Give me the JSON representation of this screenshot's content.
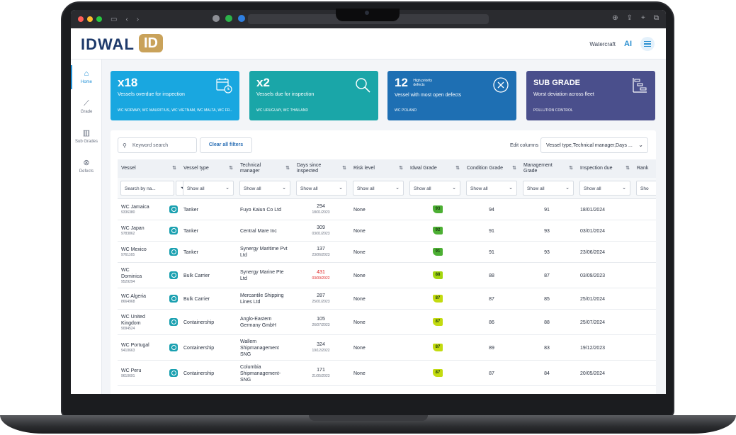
{
  "header": {
    "logo_text": "IDWAL",
    "logo_badge": "ID",
    "watercraft_label": "Watercraft",
    "ai_label": "AI"
  },
  "sidebar": {
    "items": [
      {
        "label": "Home",
        "icon": "home-icon"
      },
      {
        "label": "Grade",
        "icon": "chart-icon"
      },
      {
        "label": "Sub Grades",
        "icon": "bar-chart-icon"
      },
      {
        "label": "Defects",
        "icon": "x-circle-icon"
      }
    ]
  },
  "cards": [
    {
      "big": "x18",
      "desc": "Vessels overdue for inspection",
      "foot": "WC NORWAY, WC MAURITIUS, WC VIETNAM, WC MALTA, WC FR...",
      "color": "#19a7e0",
      "icon": "calendar-clock-icon"
    },
    {
      "big": "x2",
      "desc": "Vessels due for inspection",
      "foot": "WC URUGUAY, WC THAILAND",
      "color": "#1aa6a8",
      "icon": "search-icon"
    },
    {
      "big": "12",
      "small1": "High priority",
      "small2": "defects",
      "desc": "Vessel with most open defects",
      "foot": "WC POLAND",
      "color": "#1e6fb3",
      "icon": "x-circle-icon"
    },
    {
      "big": "SUB GRADE",
      "desc": "Worst deviation across fleet",
      "foot": "POLLUTION CONTROL",
      "color": "#4a4f8c",
      "icon": "hierarchy-icon"
    }
  ],
  "toolbar": {
    "search_placeholder": "Keyword search",
    "clear_label": "Clear all filters",
    "edit_columns_label": "Edit columns",
    "edit_columns_value": "Vessel type,Technical manager,Days ..."
  },
  "table": {
    "headers": [
      "Vessel",
      "Vessel type",
      "Technical manager",
      "Days since inspected",
      "Risk level",
      "Idwal Grade",
      "Condition Grade",
      "Management Grade",
      "Inspection due",
      "Rank"
    ],
    "filters": {
      "vessel_placeholder": "Search by na...",
      "show_all": "Show all",
      "show_all_short": "Sho"
    },
    "rows": [
      {
        "name": [
          "WC Jamaica"
        ],
        "imo": "9336380",
        "type": "Tanker",
        "manager": [
          "Fuyo Kaiun Co Ltd"
        ],
        "days": "294",
        "date": "18/01/2023",
        "risk": "None",
        "grade": "93",
        "condition": "94",
        "management": "91",
        "due": "18/01/2024",
        "red": false
      },
      {
        "name": [
          "WC Japan"
        ],
        "imo": "9783862",
        "type": "Tanker",
        "manager": [
          "Central Mare Inc"
        ],
        "days": "309",
        "date": "03/01/2023",
        "risk": "None",
        "grade": "92",
        "condition": "91",
        "management": "93",
        "due": "03/01/2024",
        "red": false
      },
      {
        "name": [
          "WC Mexico"
        ],
        "imo": "9761165",
        "type": "Tanker",
        "manager": [
          "Synergy Maritime Pvt",
          "Ltd"
        ],
        "days": "137",
        "date": "23/06/2023",
        "risk": "None",
        "grade": "91",
        "condition": "91",
        "management": "93",
        "due": "23/06/2024",
        "red": false
      },
      {
        "name": [
          "WC",
          "Dominica"
        ],
        "imo": "9529294",
        "type": "Bulk Carrier",
        "manager": [
          "Synergy Marine Pte",
          "Ltd"
        ],
        "days": "431",
        "date": "03/09/2022",
        "risk": "None",
        "grade": "88",
        "condition": "88",
        "management": "87",
        "due": "03/09/2023",
        "red": true
      },
      {
        "name": [
          "WC Algeria"
        ],
        "imo": "8664968",
        "type": "Bulk Carrier",
        "manager": [
          "Mercantile Shipping",
          "Lines Ltd"
        ],
        "days": "287",
        "date": "25/01/2023",
        "risk": "None",
        "grade": "87",
        "condition": "87",
        "management": "85",
        "due": "25/01/2024",
        "red": false
      },
      {
        "name": [
          "WC United",
          "Kingdom"
        ],
        "imo": "9094524",
        "type": "Containership",
        "manager": [
          "Anglo-Eastern",
          "Germany GmbH"
        ],
        "days": "105",
        "date": "26/07/2023",
        "risk": "None",
        "grade": "87",
        "condition": "86",
        "management": "88",
        "due": "25/07/2024",
        "red": false
      },
      {
        "name": [
          "WC Portugal"
        ],
        "imo": "9410663",
        "type": "Containership",
        "manager": [
          "Wallem",
          "Shipmanagement",
          "SNG"
        ],
        "days": "324",
        "date": "19/12/2022",
        "risk": "None",
        "grade": "87",
        "condition": "89",
        "management": "83",
        "due": "19/12/2023",
        "red": false
      },
      {
        "name": [
          "WC Peru"
        ],
        "imo": "9610691",
        "type": "Containership",
        "manager": [
          "Columbia",
          "Shipmanagement-",
          "SNG"
        ],
        "days": "171",
        "date": "21/05/2023",
        "risk": "None",
        "grade": "87",
        "condition": "87",
        "management": "84",
        "due": "20/05/2024",
        "red": false
      }
    ]
  }
}
